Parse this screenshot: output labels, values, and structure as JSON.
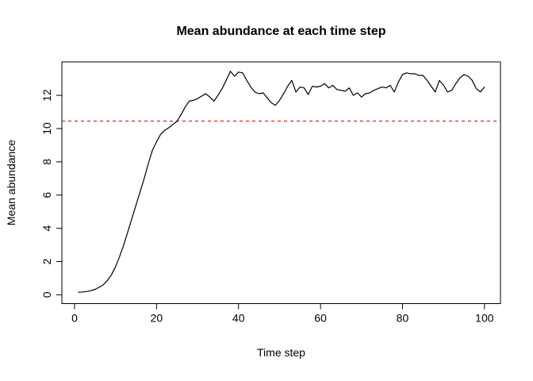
{
  "chart_data": {
    "type": "line",
    "title": "Mean abundance at each time step",
    "xlabel": "Time step",
    "ylabel": "Mean abundance",
    "grid": false,
    "legend": "none",
    "x_ticks": [
      0,
      20,
      40,
      60,
      80,
      100
    ],
    "y_ticks": [
      0,
      2,
      4,
      6,
      8,
      10,
      12
    ],
    "x_range": [
      -3.09,
      103.9
    ],
    "y_range": [
      -0.53,
      14.01
    ],
    "line_color": "#000000",
    "background": "#ffffff",
    "reference_line": {
      "value": 10.45,
      "color": "#FF0000",
      "style": "dashed",
      "name": "carrying-capacity-line"
    },
    "series": [
      {
        "name": "mean abundance",
        "x_start": 1,
        "x_step": 1,
        "values": [
          0.15,
          0.17,
          0.2,
          0.25,
          0.33,
          0.45,
          0.6,
          0.85,
          1.2,
          1.7,
          2.3,
          3.0,
          3.8,
          4.6,
          5.4,
          6.2,
          7.0,
          7.9,
          8.7,
          9.2,
          9.65,
          9.9,
          10.05,
          10.25,
          10.45,
          10.85,
          11.3,
          11.65,
          11.7,
          11.8,
          11.95,
          12.1,
          11.9,
          11.65,
          12.0,
          12.4,
          12.9,
          13.45,
          13.15,
          13.4,
          13.35,
          12.9,
          12.5,
          12.2,
          12.1,
          12.15,
          11.85,
          11.55,
          11.4,
          11.7,
          12.1,
          12.55,
          12.9,
          12.2,
          12.5,
          12.45,
          12.05,
          12.55,
          12.5,
          12.55,
          12.7,
          12.45,
          12.6,
          12.35,
          12.3,
          12.25,
          12.45,
          12.0,
          12.15,
          11.9,
          12.1,
          12.15,
          12.3,
          12.4,
          12.5,
          12.45,
          12.6,
          12.2,
          12.8,
          13.25,
          13.35,
          13.3,
          13.3,
          13.2,
          13.2,
          12.9,
          12.55,
          12.2,
          12.9,
          12.6,
          12.2,
          12.3,
          12.7,
          13.05,
          13.25,
          13.15,
          12.9,
          12.4,
          12.2,
          12.5
        ]
      }
    ]
  }
}
